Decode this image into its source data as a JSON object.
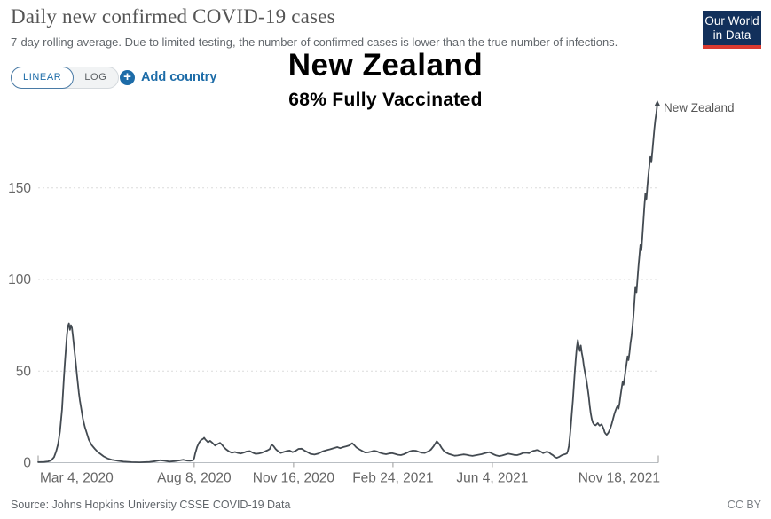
{
  "header": {
    "title": "Daily new confirmed COVID-19 cases",
    "subtitle": "7-day rolling average. Due to limited testing, the number of confirmed cases is lower than the true number of infections.",
    "logo": {
      "line1": "Our World",
      "line2": "in Data",
      "bg_color": "#12305b",
      "bar_color": "#da3a30"
    }
  },
  "controls": {
    "scale_options": [
      {
        "label": "LINEAR",
        "active": true
      },
      {
        "label": "LOG",
        "active": false
      }
    ],
    "add_country_label": "Add country",
    "accent_blue": "#1d6ca8"
  },
  "icons": {
    "add_country": "plus-circle-icon"
  },
  "overlay": {
    "country_title": "New Zealand",
    "vaccination_note": "68% Fully Vaccinated"
  },
  "footer": {
    "source": "Source: Johns Hopkins University CSSE COVID-19 Data",
    "license": "CC BY"
  },
  "chart_data": {
    "type": "line",
    "title": "Daily new confirmed COVID-19 cases",
    "annotation": "68% Fully Vaccinated",
    "entity": "New Zealand",
    "line_color": "#434a51",
    "grid": true,
    "legend_position": "end-of-line",
    "ylim": [
      0,
      197
    ],
    "y_ticks": [
      0,
      50,
      100,
      150
    ],
    "x_unit": "days since Mar 4, 2020",
    "x_range_days": [
      0,
      624
    ],
    "x_ticks": [
      {
        "label": "Mar 4, 2020",
        "day": 0,
        "align": "start",
        "edge": true
      },
      {
        "label": "Aug 8, 2020",
        "day": 157,
        "align": "middle",
        "edge": false
      },
      {
        "label": "Nov 16, 2020",
        "day": 257,
        "align": "middle",
        "edge": false
      },
      {
        "label": "Feb 24, 2021",
        "day": 357,
        "align": "middle",
        "edge": false
      },
      {
        "label": "Jun 4, 2021",
        "day": 457,
        "align": "middle",
        "edge": false
      },
      {
        "label": "Nov 18, 2021",
        "day": 624,
        "align": "end",
        "edge": true
      }
    ],
    "series": [
      {
        "name": "New Zealand",
        "points": [
          [
            0,
            0.3
          ],
          [
            6,
            0.4
          ],
          [
            10,
            0.7
          ],
          [
            13,
            1.2
          ],
          [
            16,
            3
          ],
          [
            18,
            6
          ],
          [
            20,
            10
          ],
          [
            22,
            17
          ],
          [
            24,
            29
          ],
          [
            26,
            47
          ],
          [
            27,
            55
          ],
          [
            28,
            63
          ],
          [
            29,
            70
          ],
          [
            30,
            74.5
          ],
          [
            31,
            76
          ],
          [
            32,
            72.5
          ],
          [
            33,
            75
          ],
          [
            34,
            73.5
          ],
          [
            35,
            69
          ],
          [
            36,
            64
          ],
          [
            37,
            59
          ],
          [
            38,
            53.5
          ],
          [
            39,
            48
          ],
          [
            40,
            43
          ],
          [
            41,
            38
          ],
          [
            42,
            34
          ],
          [
            43,
            30.5
          ],
          [
            45,
            24
          ],
          [
            47,
            19.5
          ],
          [
            49,
            16
          ],
          [
            51,
            12.5
          ],
          [
            54,
            9.5
          ],
          [
            57,
            7.5
          ],
          [
            60,
            5.8
          ],
          [
            63,
            4.6
          ],
          [
            66,
            3.4
          ],
          [
            70,
            2.3
          ],
          [
            74,
            1.6
          ],
          [
            80,
            1.0
          ],
          [
            86,
            0.6
          ],
          [
            94,
            0.3
          ],
          [
            102,
            0.2
          ],
          [
            112,
            0.4
          ],
          [
            118,
            0.8
          ],
          [
            123,
            1.3
          ],
          [
            127,
            1.0
          ],
          [
            132,
            0.6
          ],
          [
            137,
            0.8
          ],
          [
            142,
            1.2
          ],
          [
            146,
            1.6
          ],
          [
            150,
            1.1
          ],
          [
            153,
            1.0
          ],
          [
            156,
            1.4
          ],
          [
            157,
            2.5
          ],
          [
            158,
            5
          ],
          [
            159,
            6.8
          ],
          [
            160,
            8.6
          ],
          [
            162,
            11
          ],
          [
            164,
            12.4
          ],
          [
            166,
            13.0
          ],
          [
            167,
            13.6
          ],
          [
            168,
            12.8
          ],
          [
            169,
            12.2
          ],
          [
            171,
            11.1
          ],
          [
            173,
            11.9
          ],
          [
            175,
            11.0
          ],
          [
            176,
            10.4
          ],
          [
            178,
            9.3
          ],
          [
            180,
            10.0
          ],
          [
            183,
            10.8
          ],
          [
            185,
            9.8
          ],
          [
            187,
            8.4
          ],
          [
            189,
            7.3
          ],
          [
            192,
            6.1
          ],
          [
            195,
            5.4
          ],
          [
            198,
            5.8
          ],
          [
            201,
            5.3
          ],
          [
            204,
            5.0
          ],
          [
            207,
            5.5
          ],
          [
            210,
            6.1
          ],
          [
            213,
            6.3
          ],
          [
            216,
            5.4
          ],
          [
            219,
            4.8
          ],
          [
            222,
            5.0
          ],
          [
            225,
            5.4
          ],
          [
            228,
            6.1
          ],
          [
            231,
            6.8
          ],
          [
            233,
            7.4
          ],
          [
            235,
            9.9
          ],
          [
            237,
            8.9
          ],
          [
            239,
            7.4
          ],
          [
            241,
            6.4
          ],
          [
            244,
            5.3
          ],
          [
            247,
            5.8
          ],
          [
            250,
            6.3
          ],
          [
            253,
            6.6
          ],
          [
            256,
            5.7
          ],
          [
            259,
            6.4
          ],
          [
            262,
            7.5
          ],
          [
            265,
            7.6
          ],
          [
            268,
            6.6
          ],
          [
            271,
            5.7
          ],
          [
            274,
            4.8
          ],
          [
            278,
            4.4
          ],
          [
            282,
            5.0
          ],
          [
            286,
            6.1
          ],
          [
            290,
            6.8
          ],
          [
            294,
            7.3
          ],
          [
            298,
            8.0
          ],
          [
            301,
            8.5
          ],
          [
            304,
            7.9
          ],
          [
            307,
            8.5
          ],
          [
            310,
            8.9
          ],
          [
            313,
            9.4
          ],
          [
            315,
            10.2
          ],
          [
            316,
            10.6
          ],
          [
            318,
            9.6
          ],
          [
            320,
            8.4
          ],
          [
            323,
            7.3
          ],
          [
            326,
            6.4
          ],
          [
            329,
            5.5
          ],
          [
            332,
            5.6
          ],
          [
            335,
            6.0
          ],
          [
            338,
            6.5
          ],
          [
            341,
            6.1
          ],
          [
            344,
            5.4
          ],
          [
            347,
            4.9
          ],
          [
            350,
            4.6
          ],
          [
            353,
            5.0
          ],
          [
            356,
            5.2
          ],
          [
            359,
            4.8
          ],
          [
            362,
            4.3
          ],
          [
            365,
            4.1
          ],
          [
            368,
            4.6
          ],
          [
            371,
            5.4
          ],
          [
            374,
            6.2
          ],
          [
            377,
            6.6
          ],
          [
            380,
            6.5
          ],
          [
            383,
            5.9
          ],
          [
            386,
            5.4
          ],
          [
            389,
            5.3
          ],
          [
            392,
            6.0
          ],
          [
            395,
            7.0
          ],
          [
            398,
            9.0
          ],
          [
            400,
            10.8
          ],
          [
            401,
            11.6
          ],
          [
            402,
            11.2
          ],
          [
            404,
            9.8
          ],
          [
            406,
            8.0
          ],
          [
            408,
            6.6
          ],
          [
            410,
            5.6
          ],
          [
            413,
            4.8
          ],
          [
            416,
            4.3
          ],
          [
            419,
            3.8
          ],
          [
            422,
            3.9
          ],
          [
            425,
            4.2
          ],
          [
            428,
            4.5
          ],
          [
            431,
            4.3
          ],
          [
            434,
            3.9
          ],
          [
            437,
            3.7
          ],
          [
            440,
            4.0
          ],
          [
            443,
            4.3
          ],
          [
            446,
            4.6
          ],
          [
            449,
            5.1
          ],
          [
            452,
            5.5
          ],
          [
            454,
            5.7
          ],
          [
            456,
            5.2
          ],
          [
            458,
            4.6
          ],
          [
            461,
            3.9
          ],
          [
            464,
            3.6
          ],
          [
            467,
            3.9
          ],
          [
            470,
            4.4
          ],
          [
            473,
            4.9
          ],
          [
            476,
            4.6
          ],
          [
            479,
            4.2
          ],
          [
            482,
            4.1
          ],
          [
            485,
            4.6
          ],
          [
            488,
            5.3
          ],
          [
            491,
            5.4
          ],
          [
            494,
            5.2
          ],
          [
            496,
            5.9
          ],
          [
            498,
            6.4
          ],
          [
            500,
            6.6
          ],
          [
            502,
            6.9
          ],
          [
            504,
            6.5
          ],
          [
            506,
            5.9
          ],
          [
            508,
            5.2
          ],
          [
            510,
            5.6
          ],
          [
            512,
            6.0
          ],
          [
            514,
            5.5
          ],
          [
            516,
            4.7
          ],
          [
            518,
            4.0
          ],
          [
            520,
            3.0
          ],
          [
            522,
            2.6
          ],
          [
            524,
            3.1
          ],
          [
            526,
            3.8
          ],
          [
            528,
            4.3
          ],
          [
            530,
            4.6
          ],
          [
            532,
            5.0
          ],
          [
            533,
            6.5
          ],
          [
            534,
            9
          ],
          [
            535,
            14
          ],
          [
            536,
            20
          ],
          [
            537,
            27
          ],
          [
            538,
            34
          ],
          [
            539,
            42
          ],
          [
            540,
            50
          ],
          [
            541,
            57
          ],
          [
            542,
            63
          ],
          [
            543,
            67
          ],
          [
            544,
            63.5
          ],
          [
            545,
            61
          ],
          [
            546,
            64
          ],
          [
            547,
            60
          ],
          [
            548,
            57
          ],
          [
            549,
            53
          ],
          [
            550,
            50
          ],
          [
            551,
            47
          ],
          [
            552,
            44
          ],
          [
            553,
            40
          ],
          [
            554,
            36
          ],
          [
            555,
            31
          ],
          [
            556,
            27
          ],
          [
            557,
            24
          ],
          [
            558,
            22
          ],
          [
            559,
            21
          ],
          [
            560,
            20.6
          ],
          [
            561,
            20.4
          ],
          [
            562,
            21
          ],
          [
            563,
            21.6
          ],
          [
            564,
            20.8
          ],
          [
            565,
            20.2
          ],
          [
            566,
            20.6
          ],
          [
            567,
            20.9
          ],
          [
            568,
            19.6
          ],
          [
            569,
            18.4
          ],
          [
            570,
            16.6
          ],
          [
            571,
            15.8
          ],
          [
            572,
            15.2
          ],
          [
            573,
            15.8
          ],
          [
            574,
            16.6
          ],
          [
            575,
            17.8
          ],
          [
            576,
            19.2
          ],
          [
            577,
            21
          ],
          [
            578,
            23
          ],
          [
            579,
            25
          ],
          [
            580,
            27
          ],
          [
            581,
            28.5
          ],
          [
            582,
            30
          ],
          [
            583,
            31
          ],
          [
            584,
            29.5
          ],
          [
            585,
            32.5
          ],
          [
            586,
            36.5
          ],
          [
            587,
            40.5
          ],
          [
            588,
            44
          ],
          [
            589,
            42.5
          ],
          [
            590,
            46
          ],
          [
            591,
            50
          ],
          [
            592,
            54
          ],
          [
            593,
            58
          ],
          [
            594,
            56
          ],
          [
            595,
            60
          ],
          [
            596,
            65
          ],
          [
            597,
            69
          ],
          [
            598,
            74
          ],
          [
            599,
            80
          ],
          [
            600,
            88
          ],
          [
            601,
            96
          ],
          [
            602,
            93
          ],
          [
            603,
            100
          ],
          [
            604,
            107
          ],
          [
            605,
            113
          ],
          [
            606,
            119
          ],
          [
            607,
            116
          ],
          [
            608,
            124
          ],
          [
            609,
            132
          ],
          [
            610,
            140
          ],
          [
            611,
            147
          ],
          [
            612,
            144
          ],
          [
            613,
            151
          ],
          [
            614,
            157
          ],
          [
            615,
            162
          ],
          [
            616,
            167
          ],
          [
            617,
            164
          ],
          [
            618,
            170
          ],
          [
            619,
            176
          ],
          [
            620,
            182
          ],
          [
            621,
            187
          ],
          [
            622,
            191
          ],
          [
            623,
            196
          ]
        ]
      }
    ]
  }
}
